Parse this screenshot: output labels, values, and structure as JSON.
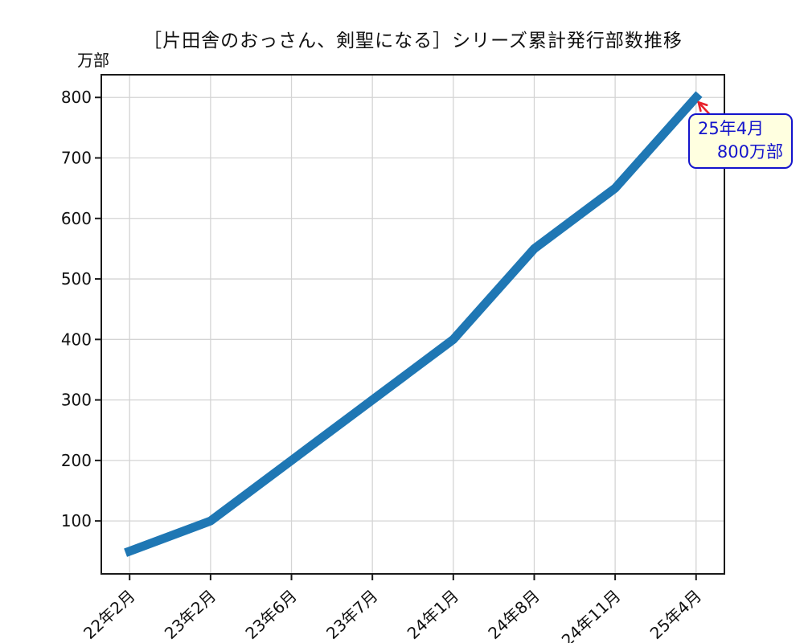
{
  "chart_data": {
    "type": "line",
    "title": "［片田舎のおっさん、剣聖になる］シリーズ累計発行部数推移",
    "unit_label": "万部",
    "categories": [
      "22年2月",
      "23年2月",
      "23年6月",
      "23年7月",
      "24年1月",
      "24年8月",
      "24年11月",
      "25年4月"
    ],
    "values": [
      50,
      100,
      200,
      300,
      400,
      550,
      650,
      800
    ],
    "series_name": "シリーズ累計発行部数",
    "yticks": [
      100,
      200,
      300,
      400,
      500,
      600,
      700,
      800
    ],
    "ylim": [
      12.5,
      837.5
    ],
    "xlabel": "",
    "ylabel": "万部",
    "grid": true,
    "legend": false,
    "line_color": "#1f77b4",
    "grid_color": "#d4d4d4",
    "spine_color": "#1a1a1a",
    "annotation": {
      "line1": "25年4月",
      "line2": "800万部",
      "target_category": "25年4月",
      "target_value": 800,
      "box_fill": "#ffffe0",
      "box_border": "#1414cc",
      "text_color": "#1414cc",
      "arrow_color": "#e8212b"
    }
  }
}
